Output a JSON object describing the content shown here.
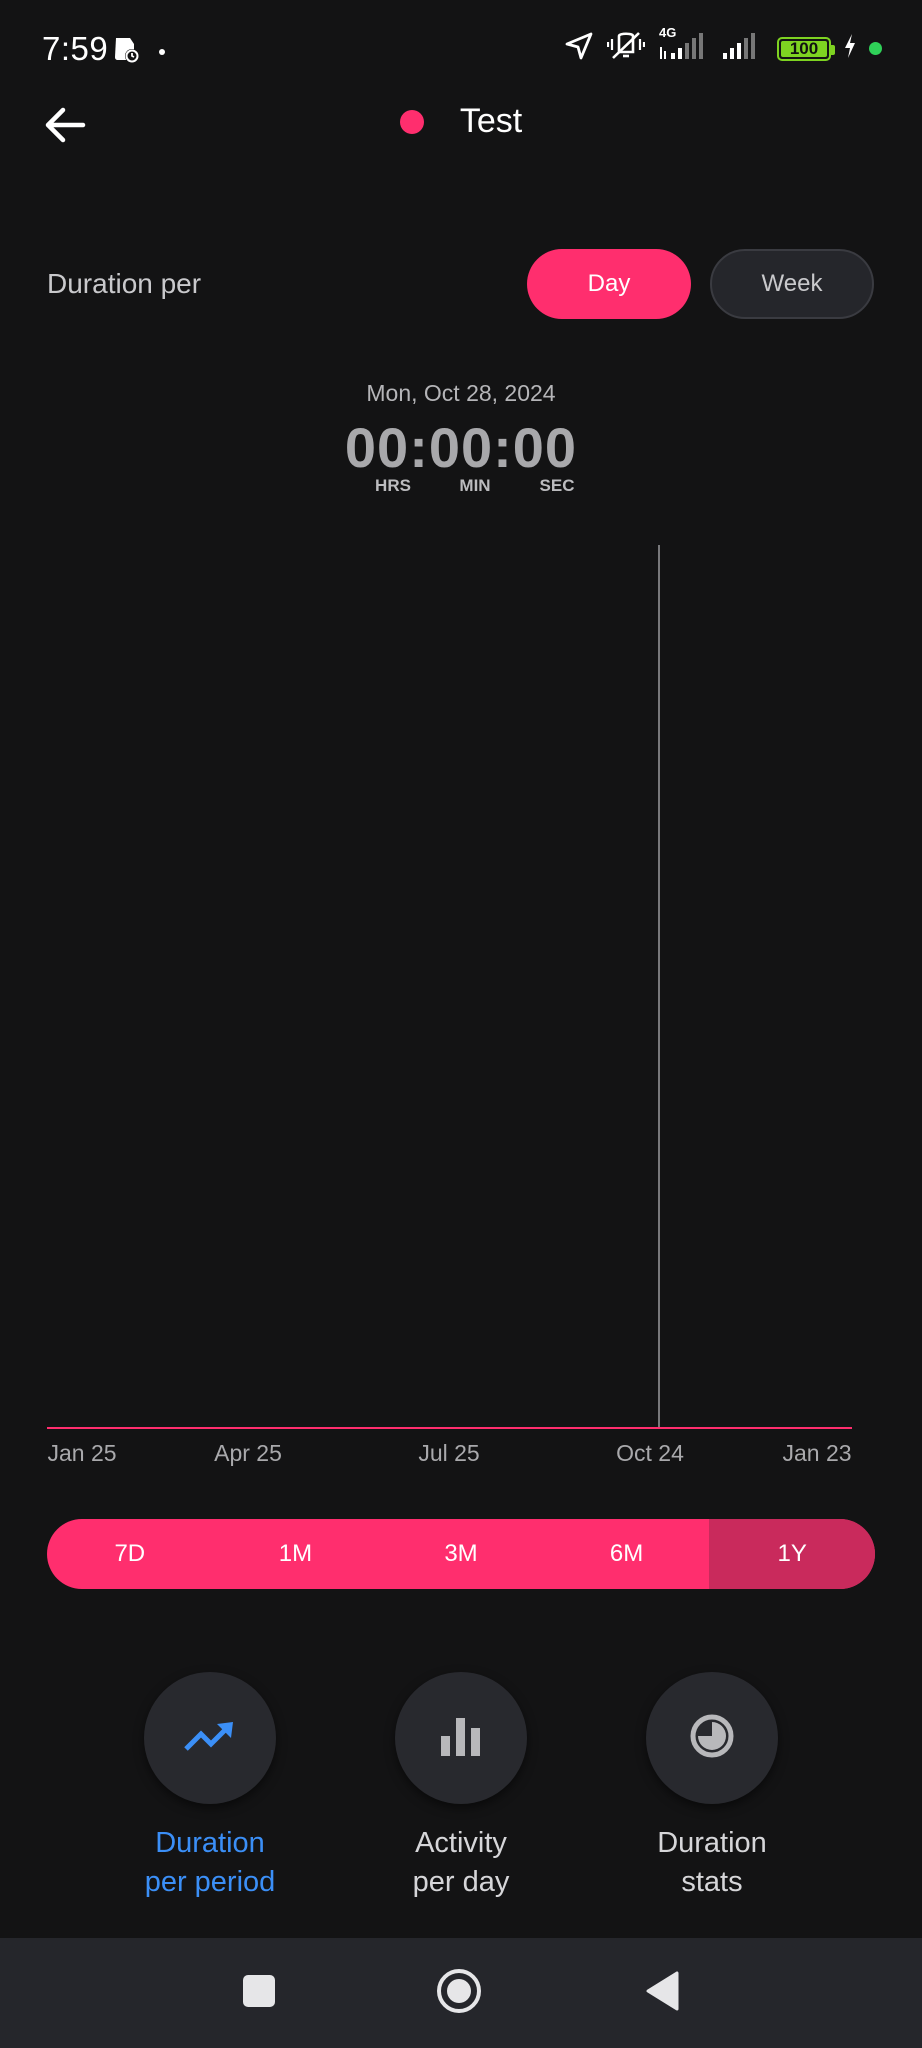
{
  "status_bar": {
    "time": "7:59",
    "network": "4G",
    "battery": "100",
    "icons": [
      "alarm-clock-icon",
      "dot-icon",
      "location-icon",
      "vibrate-off-icon",
      "signal-icon",
      "signal-icon",
      "battery-icon",
      "charging-icon"
    ]
  },
  "header": {
    "title": "Test",
    "title_color": "#ff2e6e",
    "back_icon": "arrow-left-icon"
  },
  "duration_per": {
    "label": "Duration per",
    "options": [
      "Day",
      "Week"
    ],
    "selected": "Day"
  },
  "readout": {
    "date": "Mon, Oct 28, 2024",
    "time": "00:00:00",
    "units": [
      "HRS",
      "MIN",
      "SEC"
    ]
  },
  "chart_data": {
    "type": "line",
    "x_ticks": [
      "Jan 25",
      "Apr 25",
      "Jul 25",
      "Oct 24",
      "Jan 23"
    ],
    "cursor_x": "Oct 28, 2024",
    "series": [
      {
        "values": [
          0,
          0,
          0,
          0,
          0
        ]
      }
    ],
    "grid": false
  },
  "range": {
    "options": [
      "7D",
      "1M",
      "3M",
      "6M",
      "1Y"
    ],
    "selected": "1Y"
  },
  "tiles": [
    {
      "label": "Duration\nper period",
      "icon": "trending-up-icon",
      "active": true
    },
    {
      "label": "Activity\nper day",
      "icon": "bar-chart-icon",
      "active": false
    },
    {
      "label": "Duration\nstats",
      "icon": "pie-chart-icon",
      "active": false
    }
  ],
  "colors": {
    "accent": "#ff2e6e",
    "accent_selected": "#c92a5c",
    "active_blue": "#3b8ff7",
    "background": "#131314"
  },
  "system_nav": {
    "icons": [
      "recents-square-icon",
      "home-circle-icon",
      "back-triangle-icon"
    ]
  }
}
